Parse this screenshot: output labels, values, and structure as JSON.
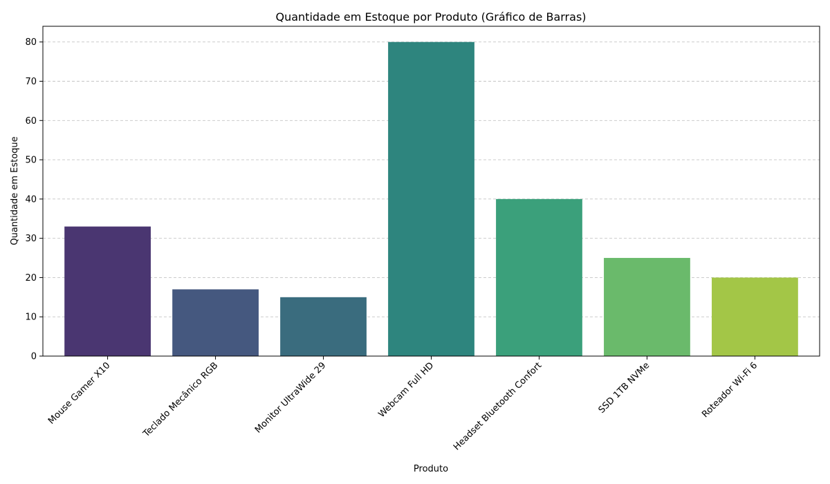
{
  "chart_data": {
    "type": "bar",
    "title": "Quantidade em Estoque por Produto (Gráfico de Barras)",
    "xlabel": "Produto",
    "ylabel": "Quantidade em Estoque",
    "categories": [
      "Mouse Gamer X10",
      "Teclado Mecânico RGB",
      "Monitor UltraWide 29",
      "Webcam Full HD",
      "Headset Bluetooth Confort",
      "SSD 1TB NVMe",
      "Roteador Wi-Fi 6"
    ],
    "values": [
      33,
      17,
      15,
      80,
      40,
      25,
      20
    ],
    "colors": [
      "#4a3671",
      "#45587f",
      "#3a6c7e",
      "#2e857e",
      "#3ba07b",
      "#6aba6b",
      "#a3c647"
    ],
    "ylim": [
      0,
      84
    ],
    "yticks": [
      0,
      10,
      20,
      30,
      40,
      50,
      60,
      70,
      80
    ],
    "grid": true,
    "grid_axis": "y",
    "grid_style": "dashed",
    "legend": "none"
  }
}
